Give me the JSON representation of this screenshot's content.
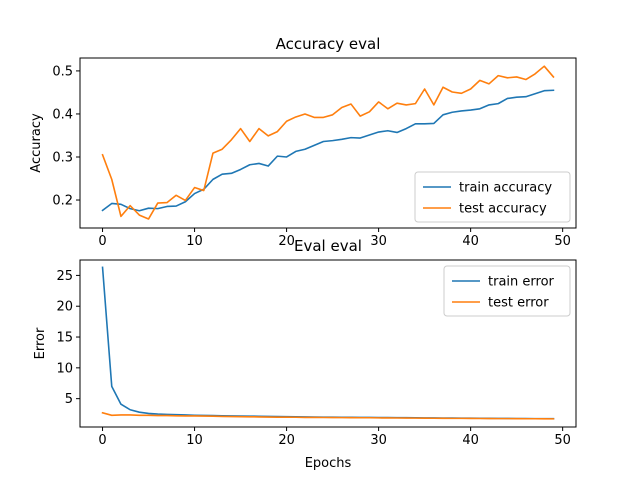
{
  "chart_data": [
    {
      "type": "line",
      "title": "Accuracy eval",
      "xlabel": "",
      "ylabel": "Accuracy",
      "xlim": [
        -2.45,
        51.45
      ],
      "ylim": [
        0.135,
        0.53
      ],
      "xticks": [
        0,
        10,
        20,
        30,
        40,
        50
      ],
      "yticks": [
        0.2,
        0.3,
        0.4,
        0.5
      ],
      "ytick_labels": [
        "0.2",
        "0.3",
        "0.4",
        "0.5"
      ],
      "legend": "lower-right",
      "grid": false,
      "x": [
        0,
        1,
        2,
        3,
        4,
        5,
        6,
        7,
        8,
        9,
        10,
        11,
        12,
        13,
        14,
        15,
        16,
        17,
        18,
        19,
        20,
        21,
        22,
        23,
        24,
        25,
        26,
        27,
        28,
        29,
        30,
        31,
        32,
        33,
        34,
        35,
        36,
        37,
        38,
        39,
        40,
        41,
        42,
        43,
        44,
        45,
        46,
        47,
        48,
        49
      ],
      "series": [
        {
          "name": "train accuracy",
          "color": "#1f77b4",
          "values": [
            0.176,
            0.192,
            0.19,
            0.18,
            0.175,
            0.181,
            0.18,
            0.185,
            0.186,
            0.196,
            0.215,
            0.225,
            0.248,
            0.26,
            0.262,
            0.271,
            0.282,
            0.285,
            0.279,
            0.302,
            0.3,
            0.313,
            0.318,
            0.327,
            0.336,
            0.338,
            0.341,
            0.345,
            0.344,
            0.351,
            0.358,
            0.361,
            0.357,
            0.366,
            0.377,
            0.377,
            0.378,
            0.398,
            0.404,
            0.407,
            0.409,
            0.412,
            0.421,
            0.424,
            0.436,
            0.439,
            0.44,
            0.447,
            0.454,
            0.455
          ]
        },
        {
          "name": "test accuracy",
          "color": "#ff7f0e",
          "values": [
            0.305,
            0.248,
            0.162,
            0.187,
            0.165,
            0.156,
            0.193,
            0.194,
            0.211,
            0.199,
            0.229,
            0.222,
            0.309,
            0.318,
            0.34,
            0.366,
            0.336,
            0.366,
            0.349,
            0.359,
            0.383,
            0.393,
            0.4,
            0.392,
            0.392,
            0.398,
            0.415,
            0.423,
            0.395,
            0.405,
            0.428,
            0.412,
            0.425,
            0.421,
            0.424,
            0.458,
            0.421,
            0.462,
            0.451,
            0.448,
            0.458,
            0.478,
            0.47,
            0.489,
            0.484,
            0.486,
            0.48,
            0.493,
            0.511,
            0.486
          ]
        }
      ]
    },
    {
      "type": "line",
      "title": "Eval eval",
      "xlabel": "Epochs",
      "ylabel": "Error",
      "xlim": [
        -2.45,
        51.45
      ],
      "ylim": [
        0.4,
        27.5
      ],
      "xticks": [
        0,
        10,
        20,
        30,
        40,
        50
      ],
      "yticks": [
        5,
        10,
        15,
        20,
        25
      ],
      "legend": "upper-right",
      "grid": false,
      "x": [
        0,
        1,
        2,
        3,
        4,
        5,
        6,
        7,
        8,
        9,
        10,
        11,
        12,
        13,
        14,
        15,
        16,
        17,
        18,
        19,
        20,
        21,
        22,
        23,
        24,
        25,
        26,
        27,
        28,
        29,
        30,
        31,
        32,
        33,
        34,
        35,
        36,
        37,
        38,
        39,
        40,
        41,
        42,
        43,
        44,
        45,
        46,
        47,
        48,
        49
      ],
      "series": [
        {
          "name": "train error",
          "color": "#1f77b4",
          "values": [
            26.3,
            7.0,
            4.1,
            3.2,
            2.8,
            2.6,
            2.5,
            2.45,
            2.4,
            2.35,
            2.3,
            2.28,
            2.25,
            2.22,
            2.2,
            2.18,
            2.16,
            2.14,
            2.12,
            2.1,
            2.08,
            2.06,
            2.04,
            2.02,
            2.0,
            1.99,
            1.98,
            1.97,
            1.96,
            1.95,
            1.94,
            1.93,
            1.92,
            1.91,
            1.9,
            1.88,
            1.87,
            1.86,
            1.85,
            1.84,
            1.83,
            1.82,
            1.81,
            1.8,
            1.79,
            1.78,
            1.77,
            1.76,
            1.75,
            1.75
          ]
        },
        {
          "name": "test error",
          "color": "#ff7f0e",
          "values": [
            2.7,
            2.3,
            2.35,
            2.35,
            2.3,
            2.3,
            2.25,
            2.25,
            2.22,
            2.2,
            2.2,
            2.18,
            2.15,
            2.12,
            2.1,
            2.08,
            2.06,
            2.04,
            2.02,
            2.0,
            2.0,
            1.98,
            1.96,
            1.95,
            1.94,
            1.93,
            1.92,
            1.91,
            1.9,
            1.9,
            1.88,
            1.87,
            1.86,
            1.85,
            1.84,
            1.83,
            1.82,
            1.81,
            1.8,
            1.8,
            1.79,
            1.78,
            1.77,
            1.76,
            1.76,
            1.75,
            1.74,
            1.74,
            1.73,
            1.72
          ]
        }
      ]
    }
  ]
}
